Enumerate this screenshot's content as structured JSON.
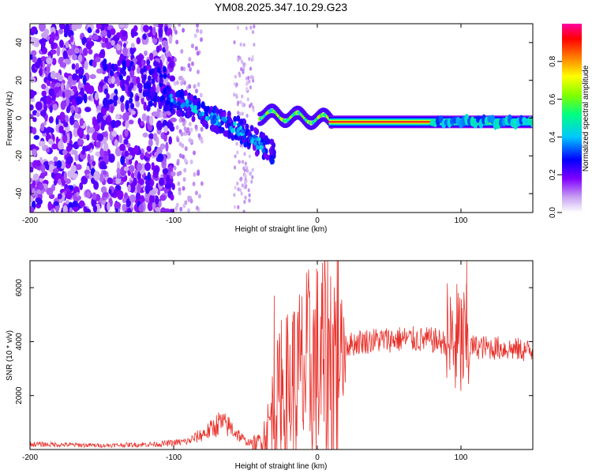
{
  "title": "YM08.2025.347.10.29.G23",
  "chart_data": [
    {
      "type": "heatmap",
      "xlabel": "Height of straight line (km)",
      "ylabel": "Frequency (Hz)",
      "xlim": [
        -200,
        150
      ],
      "ylim": [
        -50,
        50
      ],
      "xticks": [
        -200,
        -100,
        0,
        100
      ],
      "yticks": [
        -40,
        -20,
        0,
        20,
        40
      ],
      "colorbar": {
        "label": "Normalized spectral amplitude",
        "range": [
          0,
          1
        ],
        "ticks": [
          0.0,
          0.2,
          0.4,
          0.6,
          0.8
        ],
        "tick_labels": [
          "0.0",
          "0.2",
          "0.4",
          "0.6",
          "0.8"
        ],
        "colors": [
          "#ffffff",
          "#c8a2f0",
          "#8000ff",
          "#0000ff",
          "#00c8ff",
          "#00ff80",
          "#80ff00",
          "#ffff00",
          "#ff8000",
          "#ff0000",
          "#ff00a0"
        ]
      },
      "features": [
        {
          "name": "noise",
          "x_range": [
            -200,
            -100
          ],
          "freq_range": [
            -50,
            50
          ],
          "amplitude": 0.15
        },
        {
          "name": "descending track",
          "points": [
            [
              -105,
              10
            ],
            [
              -90,
              7
            ],
            [
              -80,
              2
            ],
            [
              -70,
              -1
            ],
            [
              -60,
              -4
            ],
            [
              -50,
              -8
            ],
            [
              -40,
              -14
            ],
            [
              -30,
              -18
            ]
          ],
          "amplitude": 0.35
        },
        {
          "name": "stable line",
          "x_range": [
            10,
            150
          ],
          "freq": -2,
          "amplitude": 0.95
        }
      ]
    },
    {
      "type": "line",
      "xlabel": "Height of straight line (km)",
      "ylabel": "SNR (10 * v/v)",
      "xlim": [
        -200,
        150
      ],
      "ylim": [
        0,
        7000
      ],
      "xticks": [
        -200,
        -100,
        0,
        100
      ],
      "yticks": [
        2000,
        4000,
        6000
      ],
      "color": "#e8302a",
      "envelope": [
        [
          -200,
          200
        ],
        [
          -150,
          150
        ],
        [
          -110,
          200
        ],
        [
          -90,
          300
        ],
        [
          -75,
          700
        ],
        [
          -68,
          1000
        ],
        [
          -60,
          800
        ],
        [
          -50,
          300
        ],
        [
          -42,
          200
        ],
        [
          -35,
          700
        ],
        [
          -30,
          1500
        ],
        [
          -25,
          2000
        ],
        [
          -18,
          2300
        ],
        [
          -10,
          2700
        ],
        [
          -5,
          2900
        ],
        [
          0,
          3000
        ],
        [
          5,
          3200
        ],
        [
          10,
          3400
        ],
        [
          15,
          3700
        ],
        [
          20,
          3850
        ],
        [
          30,
          4000
        ],
        [
          40,
          4050
        ],
        [
          60,
          4100
        ],
        [
          80,
          4050
        ],
        [
          90,
          3950
        ],
        [
          100,
          3900
        ],
        [
          110,
          3800
        ],
        [
          130,
          3750
        ],
        [
          150,
          3650
        ]
      ],
      "spikes": [
        {
          "x": -30,
          "y": 5700
        },
        {
          "x": -25,
          "y": 4800
        },
        {
          "x": -17,
          "y": 5000
        },
        {
          "x": 98,
          "y": 5800
        },
        {
          "x": 104,
          "y": 7000
        }
      ]
    }
  ]
}
